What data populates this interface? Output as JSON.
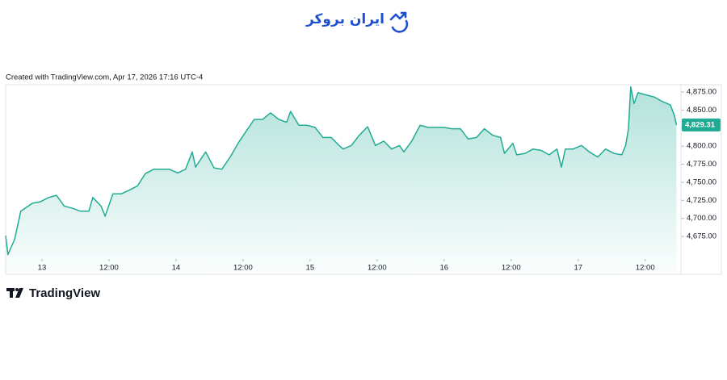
{
  "header": {
    "logo_text": "ایران بروکر"
  },
  "chart_data": {
    "type": "area",
    "note": "Created with TradingView.com, Apr 17, 2026 17:16 UTC-4",
    "color": "#22ab94",
    "x": [
      -6.5,
      -6.1,
      -4.9,
      -3.8,
      -1.7,
      -0.3,
      1.2,
      2.6,
      4.0,
      5.5,
      6.9,
      8.4,
      9.1,
      10.6,
      11.3,
      12.7,
      14.2,
      15.6,
      17.1,
      18.5,
      20.0,
      21.4,
      22.8,
      24.3,
      25.7,
      26.9,
      27.5,
      29.3,
      30.8,
      32.2,
      33.7,
      35.1,
      36.6,
      38.0,
      39.5,
      40.9,
      42.4,
      43.8,
      44.5,
      46.0,
      47.4,
      48.9,
      50.3,
      51.8,
      53.2,
      53.9,
      55.4,
      56.8,
      58.3,
      59.7,
      61.2,
      62.6,
      64.0,
      64.8,
      66.2,
      67.7,
      69.1,
      70.6,
      72.0,
      73.4,
      74.9,
      76.3,
      77.8,
      79.2,
      80.7,
      82.1,
      82.8,
      84.3,
      85.0,
      86.5,
      87.9,
      89.4,
      90.8,
      92.2,
      93.0,
      93.7,
      95.1,
      96.6,
      98.0,
      99.5,
      100.9,
      102.4,
      103.8,
      104.5,
      105.0,
      105.4,
      106.0,
      106.7,
      108.1,
      109.6,
      111.0,
      112.5,
      113.2,
      113.6
    ],
    "values": [
      4676,
      4650,
      4671,
      4710,
      4721,
      4723,
      4729,
      4732,
      4717,
      4714,
      4710,
      4710,
      4729,
      4717,
      4703,
      4734,
      4734,
      4739,
      4745,
      4762,
      4768,
      4768,
      4768,
      4763,
      4768,
      4792,
      4771,
      4792,
      4770,
      4768,
      4785,
      4804,
      4821,
      4837,
      4837,
      4846,
      4837,
      4833,
      4848,
      4829,
      4829,
      4826,
      4812,
      4812,
      4801,
      4796,
      4801,
      4815,
      4827,
      4801,
      4807,
      4796,
      4801,
      4792,
      4807,
      4829,
      4826,
      4826,
      4826,
      4824,
      4824,
      4810,
      4812,
      4824,
      4815,
      4812,
      4790,
      4804,
      4788,
      4790,
      4796,
      4794,
      4788,
      4796,
      4771,
      4796,
      4796,
      4801,
      4792,
      4785,
      4796,
      4790,
      4788,
      4801,
      4824,
      4882,
      4859,
      4874,
      4871,
      4868,
      4862,
      4857,
      4843,
      4829.31
    ],
    "price_label": {
      "value": 4829.31,
      "label": "4,829.31"
    },
    "xlim": [
      -6.5,
      114.4
    ],
    "ylim": [
      4645,
      4885
    ],
    "xticks": [
      {
        "value": 0,
        "label": "13"
      },
      {
        "value": 12,
        "label": "12:00"
      },
      {
        "value": 24,
        "label": "14"
      },
      {
        "value": 36,
        "label": "12:00"
      },
      {
        "value": 48,
        "label": "15"
      },
      {
        "value": 60,
        "label": "12:00"
      },
      {
        "value": 72,
        "label": "16"
      },
      {
        "value": 84,
        "label": "12:00"
      },
      {
        "value": 96,
        "label": "17"
      },
      {
        "value": 108,
        "label": "12:00"
      }
    ],
    "yticks": [
      {
        "value": 4675,
        "label": "4,675.00"
      },
      {
        "value": 4700,
        "label": "4,700.00"
      },
      {
        "value": 4725,
        "label": "4,725.00"
      },
      {
        "value": 4750,
        "label": "4,750.00"
      },
      {
        "value": 4775,
        "label": "4,775.00"
      },
      {
        "value": 4800,
        "label": "4,800.00"
      },
      {
        "value": 4825,
        "label": "4,825.00"
      },
      {
        "value": 4850,
        "label": "4,850.00"
      },
      {
        "value": 4875,
        "label": "4,875.00"
      }
    ]
  },
  "footer": {
    "brand": "TradingView"
  }
}
